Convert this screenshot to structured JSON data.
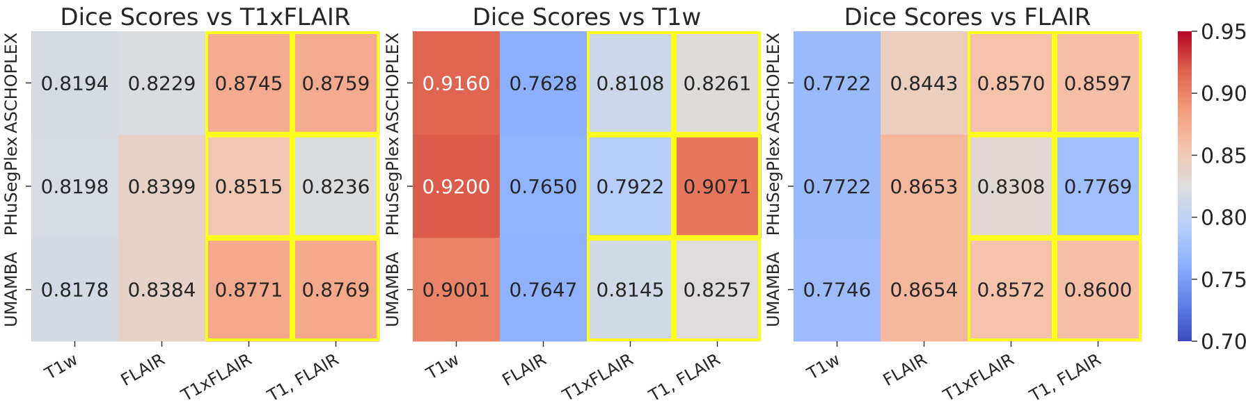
{
  "chart_data": [
    {
      "type": "heatmap",
      "title": "Dice Scores vs T1xFLAIR",
      "x_categories": [
        "T1w",
        "FLAIR",
        "T1xFLAIR",
        "T1, FLAIR"
      ],
      "y_categories": [
        "ASCHOPLEX",
        "PHuSegPlex",
        "UMAMBA"
      ],
      "values": [
        [
          0.8194,
          0.8229,
          0.8745,
          0.8759
        ],
        [
          0.8198,
          0.8399,
          0.8515,
          0.8236
        ],
        [
          0.8178,
          0.8384,
          0.8771,
          0.8769
        ]
      ],
      "value_labels": [
        [
          "0.8194",
          "0.8229",
          "0.8745",
          "0.8759"
        ],
        [
          "0.8198",
          "0.8399",
          "0.8515",
          "0.8236"
        ],
        [
          "0.8178",
          "0.8384",
          "0.8771",
          "0.8769"
        ]
      ],
      "highlighted_cells": [
        [
          0,
          2
        ],
        [
          0,
          3
        ],
        [
          1,
          2
        ],
        [
          1,
          3
        ],
        [
          2,
          2
        ],
        [
          2,
          3
        ]
      ]
    },
    {
      "type": "heatmap",
      "title": "Dice Scores vs T1w",
      "x_categories": [
        "T1w",
        "FLAIR",
        "T1xFLAIR",
        "T1, FLAIR"
      ],
      "y_categories": [
        "ASCHOPLEX",
        "PHuSegPlex",
        "UMAMBA"
      ],
      "values": [
        [
          0.916,
          0.7628,
          0.8108,
          0.8261
        ],
        [
          0.92,
          0.765,
          0.7922,
          0.9071
        ],
        [
          0.9001,
          0.7647,
          0.8145,
          0.8257
        ]
      ],
      "value_labels": [
        [
          "0.9160",
          "0.7628",
          "0.8108",
          "0.8261"
        ],
        [
          "0.9200",
          "0.7650",
          "0.7922",
          "0.9071"
        ],
        [
          "0.9001",
          "0.7647",
          "0.8145",
          "0.8257"
        ]
      ],
      "highlighted_cells": [
        [
          0,
          2
        ],
        [
          0,
          3
        ],
        [
          1,
          2
        ],
        [
          1,
          3
        ],
        [
          2,
          2
        ],
        [
          2,
          3
        ]
      ]
    },
    {
      "type": "heatmap",
      "title": "Dice Scores vs FLAIR",
      "x_categories": [
        "T1w",
        "FLAIR",
        "T1xFLAIR",
        "T1, FLAIR"
      ],
      "y_categories": [
        "ASCHOPLEX",
        "PHuSegPlex",
        "UMAMBA"
      ],
      "values": [
        [
          0.7722,
          0.8443,
          0.857,
          0.8597
        ],
        [
          0.7722,
          0.8653,
          0.8308,
          0.7769
        ],
        [
          0.7746,
          0.8654,
          0.8572,
          0.86
        ]
      ],
      "value_labels": [
        [
          "0.7722",
          "0.8443",
          "0.8570",
          "0.8597"
        ],
        [
          "0.7722",
          "0.8653",
          "0.8308",
          "0.7769"
        ],
        [
          "0.7746",
          "0.8654",
          "0.8572",
          "0.8600"
        ]
      ],
      "highlighted_cells": [
        [
          0,
          2
        ],
        [
          0,
          3
        ],
        [
          1,
          2
        ],
        [
          1,
          3
        ],
        [
          2,
          2
        ],
        [
          2,
          3
        ]
      ]
    }
  ],
  "colorbar": {
    "colormap": "coolwarm",
    "min": 0.7,
    "max": 0.95,
    "ticks": [
      0.7,
      0.75,
      0.8,
      0.85,
      0.9,
      0.95
    ],
    "tick_labels": [
      "0.70",
      "0.75",
      "0.80",
      "0.85",
      "0.90",
      "0.95"
    ]
  },
  "colors": {
    "highlight_border": "#ffff1a",
    "text_dark": "#262626",
    "text_light": "#ffffff"
  }
}
